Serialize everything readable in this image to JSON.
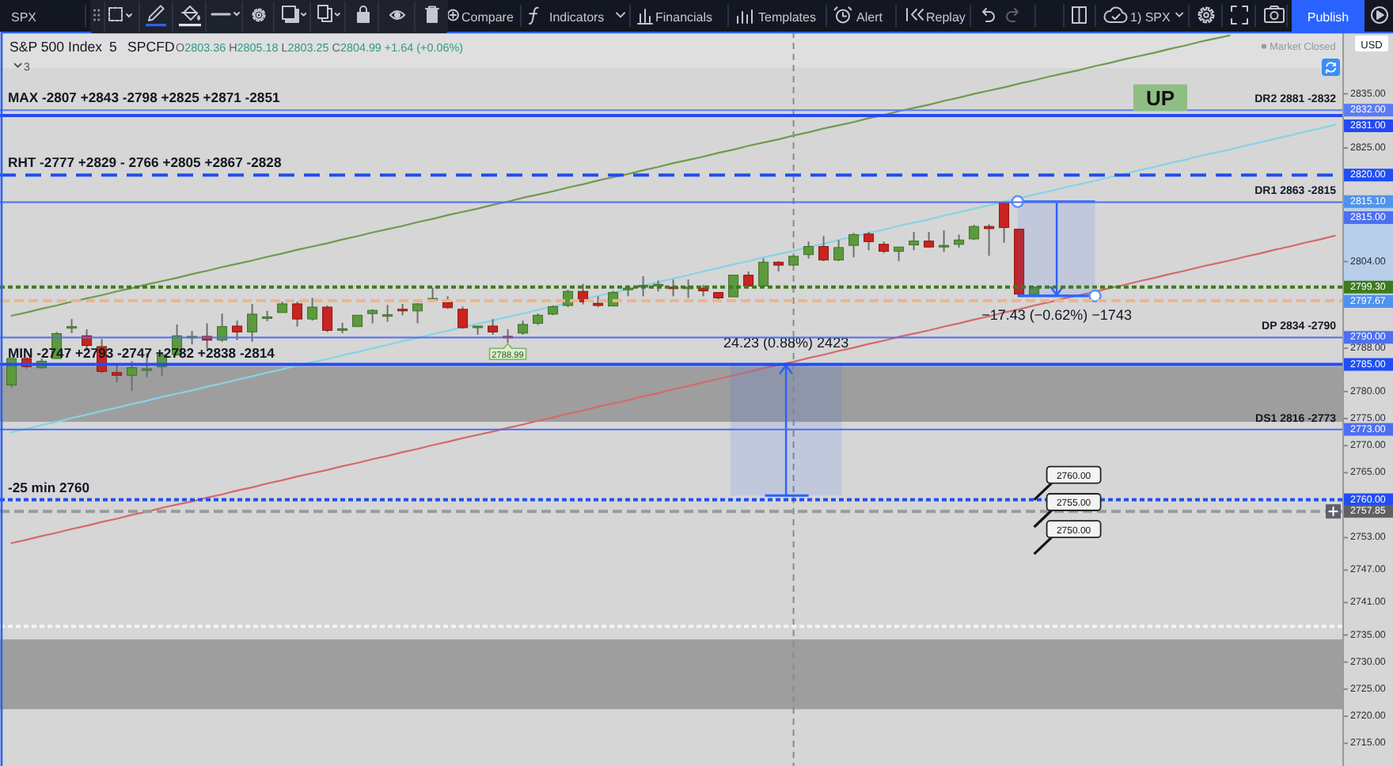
{
  "chart_data": {
    "type": "candlestick",
    "title": "S&P 500 Index",
    "categories": [
      null,
      null,
      null,
      null,
      null,
      null,
      null,
      null,
      null,
      null,
      null,
      null,
      null,
      null,
      null,
      null,
      null,
      null,
      null,
      null,
      null,
      null,
      null,
      null,
      null,
      null,
      null,
      null,
      null,
      null,
      null,
      null,
      null,
      null,
      null,
      null,
      null,
      null,
      null,
      null,
      null,
      null,
      null,
      null,
      null,
      null,
      null,
      null,
      null,
      null,
      null,
      null,
      null,
      null,
      null,
      null,
      null,
      null,
      null,
      null,
      null,
      null,
      null,
      null,
      null,
      null,
      null,
      null,
      null,
      null,
      null,
      null,
      null,
      null,
      null,
      null,
      null,
      null,
      null,
      null,
      null,
      null,
      null,
      null,
      null,
      null,
      null,
      null,
      null
    ],
    "ohlc": [
      [
        2781.2,
        2786.3,
        2780.7,
        2786.1
      ],
      [
        2786.1,
        2786.3,
        2784.2,
        2784.6
      ],
      [
        2784.4,
        2786.1,
        2784.2,
        2785.6
      ],
      [
        2786.1,
        2791.0,
        2786.1,
        2790.7
      ],
      [
        2791.8,
        2793.4,
        2790.8,
        2792.0
      ],
      [
        2790.3,
        2791.5,
        2787.6,
        2788.5
      ],
      [
        2788.3,
        2789.7,
        2783.4,
        2783.7
      ],
      [
        2783.5,
        2784.8,
        2781.7,
        2783.0
      ],
      [
        2783.0,
        2785.6,
        2780.1,
        2784.4
      ],
      [
        2784.0,
        2787.1,
        2782.7,
        2784.2
      ],
      [
        2784.6,
        2787.1,
        2782.9,
        2786.8
      ],
      [
        2786.8,
        2792.4,
        2786.6,
        2790.3
      ],
      [
        2790.0,
        2791.2,
        2788.7,
        2790.2
      ],
      [
        2790.2,
        2792.6,
        2787.9,
        2789.5
      ],
      [
        2789.5,
        2794.4,
        2789.2,
        2792.0
      ],
      [
        2792.1,
        2793.1,
        2789.5,
        2791.0
      ],
      [
        2791.0,
        2796.2,
        2789.2,
        2794.3
      ],
      [
        2793.6,
        2794.9,
        2793.0,
        2793.8
      ],
      [
        2794.6,
        2796.6,
        2794.6,
        2796.2
      ],
      [
        2796.2,
        2796.6,
        2792.0,
        2793.4
      ],
      [
        2793.4,
        2797.3,
        2793.1,
        2795.6
      ],
      [
        2795.6,
        2795.9,
        2791.0,
        2791.3
      ],
      [
        2791.3,
        2792.7,
        2790.8,
        2791.6
      ],
      [
        2792.0,
        2794.1,
        2792.0,
        2794.1
      ],
      [
        2794.4,
        2795.2,
        2792.6,
        2795.0
      ],
      [
        2794.0,
        2796.0,
        2792.9,
        2794.2
      ],
      [
        2795.2,
        2796.2,
        2794.1,
        2795.0
      ],
      [
        2794.9,
        2796.3,
        2792.6,
        2796.2
      ],
      [
        2797.0,
        2799.2,
        2796.6,
        2797.2
      ],
      [
        2796.5,
        2797.6,
        2795.3,
        2795.5
      ],
      [
        2795.2,
        2795.7,
        2791.6,
        2791.8
      ],
      [
        2791.8,
        2792.1,
        2790.5,
        2792.1
      ],
      [
        2792.1,
        2793.4,
        2790.5,
        2791.0
      ],
      [
        2790.2,
        2791.5,
        2788.99,
        2790.0
      ],
      [
        2790.8,
        2793.1,
        2790.5,
        2792.4
      ],
      [
        2792.6,
        2794.4,
        2792.3,
        2794.1
      ],
      [
        2794.3,
        2795.9,
        2794.1,
        2795.7
      ],
      [
        2795.9,
        2798.8,
        2795.6,
        2798.5
      ],
      [
        2798.5,
        2799.9,
        2796.1,
        2796.6
      ],
      [
        2796.3,
        2797.6,
        2795.6,
        2795.9
      ],
      [
        2795.8,
        2798.6,
        2795.8,
        2798.3
      ],
      [
        2798.9,
        2799.6,
        2797.6,
        2799.1
      ],
      [
        2799.3,
        2801.3,
        2797.6,
        2799.6
      ],
      [
        2799.7,
        2800.5,
        2798.5,
        2799.8
      ],
      [
        2799.3,
        2800.7,
        2797.6,
        2799.1
      ],
      [
        2799.2,
        2800.7,
        2797.3,
        2799.3
      ],
      [
        2799.1,
        2799.7,
        2797.6,
        2798.6
      ],
      [
        2798.3,
        2798.3,
        2796.5,
        2797.3
      ],
      [
        2797.5,
        2801.5,
        2797.5,
        2801.5
      ],
      [
        2801.5,
        2802.2,
        2799.4,
        2799.5
      ],
      [
        2799.5,
        2804.6,
        2799.5,
        2803.9
      ],
      [
        2803.9,
        2804.1,
        2802.2,
        2803.35
      ],
      [
        2803.36,
        2805.18,
        2803.25,
        2804.99
      ],
      [
        2805.3,
        2807.7,
        2804.6,
        2806.8
      ],
      [
        2806.8,
        2808.7,
        2804.1,
        2804.3
      ],
      [
        2804.3,
        2808.0,
        2804.1,
        2806.6
      ],
      [
        2807.0,
        2809.3,
        2804.8,
        2809.0
      ],
      [
        2809.1,
        2809.5,
        2806.1,
        2807.7
      ],
      [
        2807.2,
        2807.7,
        2805.6,
        2805.9
      ],
      [
        2805.9,
        2806.7,
        2804.1,
        2806.7
      ],
      [
        2807.1,
        2809.5,
        2806.1,
        2807.8
      ],
      [
        2807.8,
        2809.5,
        2806.6,
        2806.7
      ],
      [
        2806.9,
        2809.8,
        2805.8,
        2807.0
      ],
      [
        2807.2,
        2809.0,
        2806.6,
        2808.0
      ],
      [
        2808.2,
        2810.8,
        2808.0,
        2810.5
      ],
      [
        2810.5,
        2810.9,
        2805.1,
        2810.1
      ],
      [
        2814.9,
        2815.1,
        2807.5,
        2810.3
      ],
      [
        2810.0,
        2810.1,
        2797.67,
        2798.0
      ],
      [
        2798.0,
        2799.4,
        2797.9,
        2799.3
      ],
      null,
      null,
      null,
      null,
      null,
      null,
      null,
      null,
      null,
      null,
      null,
      null,
      null,
      null,
      null,
      null,
      null,
      null,
      null,
      null
    ],
    "series": [
      {
        "type": "line",
        "color": "#6f9a50",
        "values": [
          2794.0,
          2794.6,
          2795.3,
          2795.9,
          2796.6,
          2797.2,
          2797.8,
          2798.5,
          2799.1,
          2799.8,
          2800.4,
          2801.0,
          2801.7,
          2802.3,
          2803.0,
          2803.6,
          2804.2,
          2804.9,
          2805.5,
          2806.2,
          2806.8,
          2807.4,
          2808.1,
          2808.7,
          2809.4,
          2810.0,
          2810.6,
          2811.3,
          2811.9,
          2812.6,
          2813.2,
          2813.8,
          2814.5,
          2815.1,
          2815.8,
          2816.4,
          2817.0,
          2817.7,
          2818.3,
          2819.0,
          2819.6,
          2820.2,
          2820.9,
          2821.5,
          2822.2,
          2822.8,
          2823.4,
          2824.1,
          2824.7,
          2825.4,
          2826.0,
          2826.6,
          2827.3,
          2827.9,
          2828.6,
          2829.2,
          2829.8,
          2830.5,
          2831.1,
          2831.8,
          2832.4,
          2833.0,
          2833.7,
          2834.3,
          2835.0,
          2835.6,
          2836.2,
          2836.9,
          2837.5,
          2838.2,
          2838.8,
          2839.4,
          2840.1,
          2840.7,
          2841.4,
          2842.0,
          2842.6,
          2843.3,
          2843.9,
          2844.6,
          2845.2,
          2845.8,
          null,
          null,
          null,
          null,
          null,
          null,
          null
        ]
      },
      {
        "type": "line",
        "color": "#86d3e6",
        "values": [
          2772.5,
          2773.1,
          2773.8,
          2774.4,
          2775.1,
          2775.7,
          2776.4,
          2777.0,
          2777.7,
          2778.3,
          2779.0,
          2779.6,
          2780.2,
          2780.9,
          2781.5,
          2782.2,
          2782.8,
          2783.5,
          2784.1,
          2784.8,
          2785.4,
          2786.0,
          2786.7,
          2787.3,
          2788.0,
          2788.6,
          2789.3,
          2789.9,
          2790.6,
          2791.2,
          2791.9,
          2792.5,
          2793.1,
          2793.8,
          2794.4,
          2795.1,
          2795.7,
          2796.4,
          2797.0,
          2797.7,
          2798.3,
          2798.9,
          2799.6,
          2800.2,
          2800.9,
          2801.5,
          2802.2,
          2802.8,
          2803.5,
          2804.1,
          2804.8,
          2805.4,
          2806.0,
          2806.7,
          2807.3,
          2808.0,
          2808.6,
          2809.3,
          2809.9,
          2810.6,
          2811.2,
          2811.8,
          2812.5,
          2813.1,
          2813.8,
          2814.4,
          2815.1,
          2815.7,
          2816.4,
          2817.0,
          2817.7,
          2818.3,
          2818.9,
          2819.6,
          2820.2,
          2820.9,
          2821.5,
          2822.2,
          2822.8,
          2823.5,
          2824.1,
          2824.7,
          2825.4,
          2826.0,
          2826.7,
          2827.3,
          2828.0,
          2828.6,
          2829.3
        ]
      },
      {
        "type": "line",
        "color": "#d46a6a",
        "values": [
          2752.0,
          2752.6,
          2753.3,
          2753.9,
          2754.6,
          2755.2,
          2755.9,
          2756.5,
          2757.2,
          2757.8,
          2758.5,
          2759.1,
          2759.7,
          2760.4,
          2761.0,
          2761.7,
          2762.3,
          2763.0,
          2763.6,
          2764.3,
          2764.9,
          2765.5,
          2766.2,
          2766.8,
          2767.5,
          2768.1,
          2768.8,
          2769.4,
          2770.1,
          2770.7,
          2771.4,
          2772.0,
          2772.6,
          2773.3,
          2773.9,
          2774.6,
          2775.2,
          2775.9,
          2776.5,
          2777.2,
          2777.8,
          2778.4,
          2779.1,
          2779.7,
          2780.4,
          2781.0,
          2781.7,
          2782.3,
          2783.0,
          2783.6,
          2784.3,
          2784.9,
          2785.5,
          2786.2,
          2786.8,
          2787.5,
          2788.1,
          2788.8,
          2789.4,
          2790.1,
          2790.7,
          2791.3,
          2792.0,
          2792.6,
          2793.3,
          2793.9,
          2794.6,
          2795.2,
          2795.9,
          2796.5,
          2797.2,
          2797.8,
          2798.4,
          2799.1,
          2799.7,
          2800.4,
          2801.0,
          2801.7,
          2802.3,
          2803.0,
          2803.6,
          2804.2,
          2804.9,
          2805.5,
          2806.2,
          2806.8,
          2807.5,
          2808.1,
          2808.8
        ]
      }
    ],
    "ylim": [
      2710.8,
      2846.5
    ],
    "yticks": [
      {
        "value": 2835,
        "label": "2835.00"
      },
      {
        "value": 2832,
        "label": "2832.00"
      },
      {
        "value": 2825,
        "label": "2825.00"
      },
      {
        "value": 2820,
        "label": "2820.00"
      },
      {
        "value": 2815.1,
        "label": "2815.10"
      },
      {
        "value": 2804,
        "label": "2804.00"
      },
      {
        "value": 2799.3,
        "label": "2799.30"
      },
      {
        "value": 2790,
        "label": "2790.00"
      },
      {
        "value": 2788,
        "label": "2788.00"
      },
      {
        "value": 2785,
        "label": "2785.00"
      },
      {
        "value": 2780,
        "label": "2780.00"
      },
      {
        "value": 2775,
        "label": "2775.00"
      },
      {
        "value": 2773,
        "label": "2773.00"
      },
      {
        "value": 2770,
        "label": "2770.00"
      },
      {
        "value": 2765,
        "label": "2765.00"
      },
      {
        "value": 2760,
        "label": "2760.00"
      },
      {
        "value": 2757.85,
        "label": "2757.85"
      },
      {
        "value": 2753,
        "label": "2753.00"
      },
      {
        "value": 2747,
        "label": "2747.00"
      },
      {
        "value": 2741,
        "label": "2741.00"
      },
      {
        "value": 2735,
        "label": "2735.00"
      },
      {
        "value": 2730,
        "label": "2730.00"
      },
      {
        "value": 2725,
        "label": "2725.00"
      },
      {
        "value": 2720,
        "label": "2720.00"
      },
      {
        "value": 2715,
        "label": "2715.00"
      }
    ],
    "tick_labels": "y",
    "ref_lines": [
      {
        "axis": "y",
        "value": 2832,
        "label": "MAX -2807 +2843 -2798 +2825 +2871 -2851",
        "color": "#5a7cf2",
        "line_style": "solid"
      },
      {
        "axis": "y",
        "value": 2831,
        "label": "DR2 2881 -2832",
        "color": "#2449f0",
        "line_style": "solid"
      },
      {
        "axis": "y",
        "value": 2820,
        "label": "RHT -2777 +2829 - 2766 +2805 +2867 -2828",
        "color": "#1f4ef5",
        "line_style": "dashed"
      },
      {
        "axis": "y",
        "value": 2815,
        "label": "DR1 2863 -2815",
        "color": "#4d6ff2",
        "line_style": "solid"
      },
      {
        "axis": "y",
        "value": 2796.8,
        "color": "#efb48c",
        "line_style": "dashed"
      },
      {
        "axis": "y",
        "value": 2790,
        "label": "DP 2834 -2790",
        "color": "#4d6ff2",
        "line_style": "solid"
      },
      {
        "axis": "y",
        "value": 2785,
        "label": "MIN -2747 +2793 -2747 +2782 +2838 -2814",
        "color": "#1f4ef5",
        "line_style": "solid"
      },
      {
        "axis": "y",
        "value": 2773,
        "label": "DS1 2816 -2773",
        "color": "#4d6ff2",
        "line_style": "solid"
      },
      {
        "axis": "y",
        "value": 2760,
        "label": "-25 min 2760",
        "color": "#1f4ef5",
        "line_style": "dotted"
      },
      {
        "axis": "y",
        "value": 2757.85,
        "color": "#9a9a9a",
        "line_style": "dashed"
      },
      {
        "axis": "y",
        "value": 2736.6,
        "color": "#f4f4f4",
        "line_style": "dotted"
      }
    ],
    "bands": [
      {
        "axis": "y",
        "from": 2784.6,
        "to": 2774.4,
        "color": "#9e9e9e"
      },
      {
        "axis": "y",
        "from": 2734.2,
        "to": 2721.3,
        "color": "#9e9e9e"
      },
      {
        "axis": "y",
        "from": 2815.1,
        "to": 2797.67,
        "label": "−17.43 (−0.62%) −1743",
        "color": "#2962ff"
      },
      {
        "axis": "y",
        "from": 2760.77,
        "to": 2785,
        "label": "24.23 (0.88%) 2423",
        "color": "#2962ff"
      }
    ],
    "annotations": [
      "SPX",
      "Compare",
      "Indicators",
      "Financials",
      "Templates",
      "Alert",
      "Replay",
      "1) SPX",
      "Publish",
      "5",
      "SPCFD",
      "O2803.36 H2805.18 L2803.25 C2804.99 +1.64 (+0.06%)",
      "3",
      "Market Closed",
      "USD",
      "UP",
      {
        "text": "2788.99",
        "y": 2788.99
      },
      {
        "text": "2760.00",
        "y": 2760
      },
      "2755.00",
      "2750.00",
      "2831.00",
      "2815.00",
      "2797.67"
    ]
  }
}
